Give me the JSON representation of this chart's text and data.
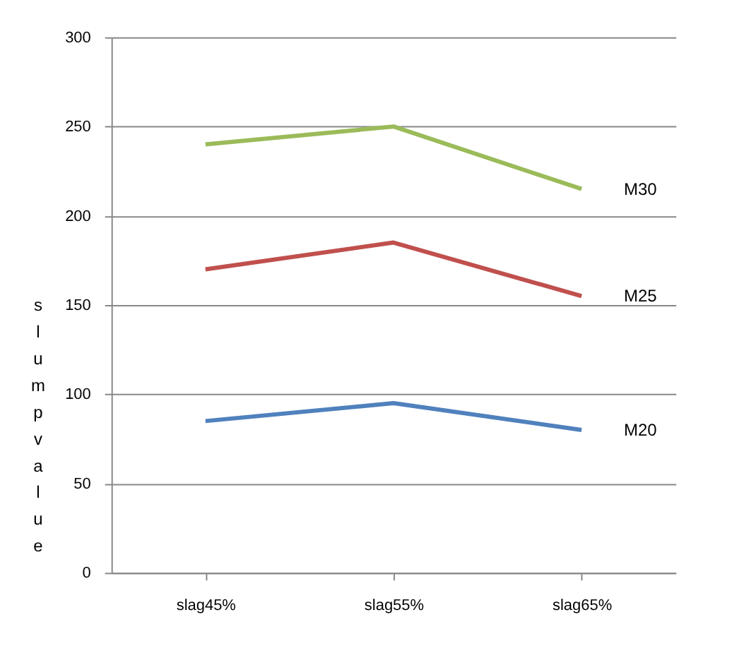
{
  "chart_data": {
    "type": "line",
    "ylabel": "slump value",
    "categories": [
      "slag45%",
      "slag55%",
      "slag65%"
    ],
    "series": [
      {
        "name": "M20",
        "color": "#4f81bd",
        "values": [
          85,
          95,
          80
        ]
      },
      {
        "name": "M25",
        "color": "#c0504d",
        "values": [
          170,
          185,
          155
        ]
      },
      {
        "name": "M30",
        "color": "#9bbb59",
        "values": [
          240,
          250,
          215
        ]
      }
    ],
    "ylim": [
      0,
      300
    ],
    "yticks": [
      0,
      50,
      100,
      150,
      200,
      250,
      300
    ],
    "grid": "y",
    "legend": false,
    "marker": "none",
    "line_style": "solid"
  }
}
